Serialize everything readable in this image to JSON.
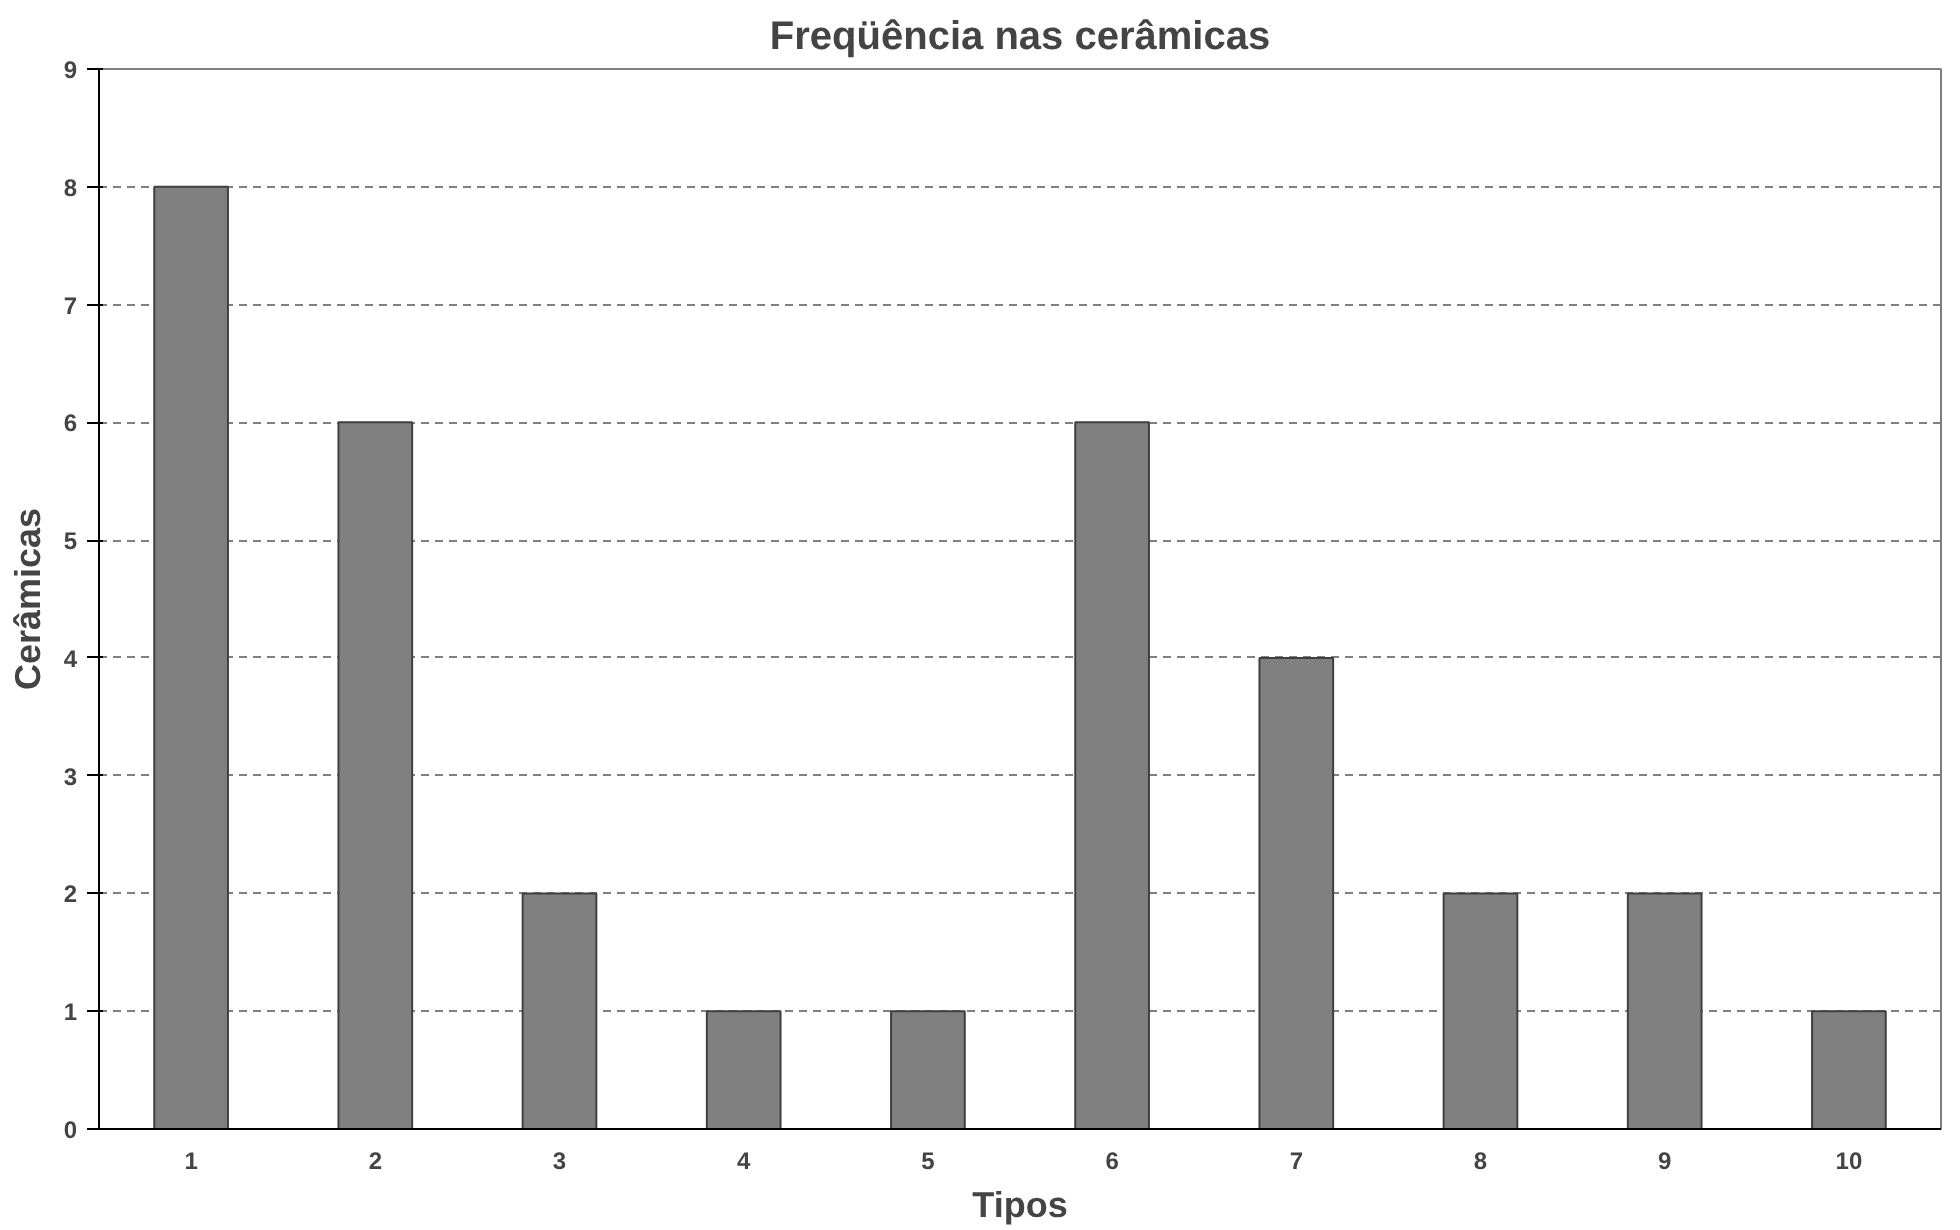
{
  "chart_data": {
    "type": "bar",
    "title": "Freqüência nas cerâmicas",
    "xlabel": "Tipos",
    "ylabel": "Cerâmicas",
    "categories": [
      "1",
      "2",
      "3",
      "4",
      "5",
      "6",
      "7",
      "8",
      "9",
      "10"
    ],
    "values": [
      8,
      6,
      2,
      1,
      1,
      6,
      4,
      2,
      2,
      1
    ],
    "color": "#808080",
    "ylim": [
      0,
      9
    ],
    "yticks": [
      0,
      1,
      2,
      3,
      4,
      5,
      6,
      7,
      8,
      9
    ],
    "grid": "y",
    "line_style": "dashed"
  }
}
